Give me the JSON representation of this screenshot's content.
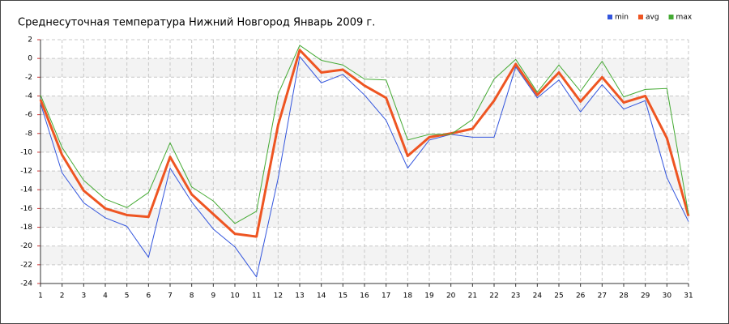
{
  "chart_data": {
    "type": "line",
    "title": "Среднесуточная температура Нижний Новгород  Январь 2009 г.",
    "x": [
      1,
      2,
      3,
      4,
      5,
      6,
      7,
      8,
      9,
      10,
      11,
      12,
      13,
      14,
      15,
      16,
      17,
      18,
      19,
      20,
      21,
      22,
      23,
      24,
      25,
      26,
      27,
      28,
      29,
      30,
      31
    ],
    "series": [
      {
        "name": "min",
        "color": "#3355dd",
        "values": [
          -4.8,
          -12.2,
          -15.4,
          -17.0,
          -17.9,
          -21.2,
          -11.7,
          -15.3,
          -18.2,
          -20.1,
          -23.3,
          -12.8,
          0.2,
          -2.6,
          -1.7,
          -3.9,
          -6.6,
          -11.7,
          -8.7,
          -8.1,
          -8.4,
          -8.4,
          -0.9,
          -4.2,
          -2.3,
          -5.7,
          -2.8,
          -5.4,
          -4.5,
          -12.7,
          -17.4
        ]
      },
      {
        "name": "avg",
        "color": "#ee5522",
        "values": [
          -4.4,
          -10.3,
          -14.1,
          -16.0,
          -16.7,
          -16.9,
          -10.5,
          -14.5,
          -16.6,
          -18.7,
          -19.0,
          -7.1,
          0.9,
          -1.5,
          -1.2,
          -2.9,
          -4.2,
          -10.4,
          -8.4,
          -8.0,
          -7.5,
          -4.5,
          -0.6,
          -3.9,
          -1.5,
          -4.6,
          -2.0,
          -4.7,
          -4.0,
          -8.5,
          -16.8
        ]
      },
      {
        "name": "max",
        "color": "#44aa33",
        "values": [
          -3.9,
          -9.5,
          -13.0,
          -15.0,
          -15.9,
          -14.3,
          -9.0,
          -13.7,
          -15.2,
          -17.6,
          -16.3,
          -3.8,
          1.4,
          -0.2,
          -0.7,
          -2.2,
          -2.3,
          -8.7,
          -8.1,
          -8.1,
          -6.5,
          -2.2,
          -0.1,
          -3.6,
          -0.7,
          -3.5,
          -0.3,
          -4.1,
          -3.3,
          -3.2,
          -16.6
        ]
      }
    ],
    "xlim": [
      1,
      31
    ],
    "xticks": [
      1,
      2,
      3,
      4,
      5,
      6,
      7,
      8,
      9,
      10,
      11,
      12,
      13,
      14,
      15,
      16,
      17,
      18,
      19,
      20,
      21,
      22,
      23,
      24,
      25,
      26,
      27,
      28,
      29,
      30,
      31
    ],
    "ylim": [
      -24,
      2
    ],
    "yticks": [
      2,
      0,
      -2,
      -4,
      -6,
      -8,
      -10,
      -12,
      -14,
      -16,
      -18,
      -20,
      -22,
      -24
    ],
    "grid": true,
    "legend": "top-right"
  }
}
